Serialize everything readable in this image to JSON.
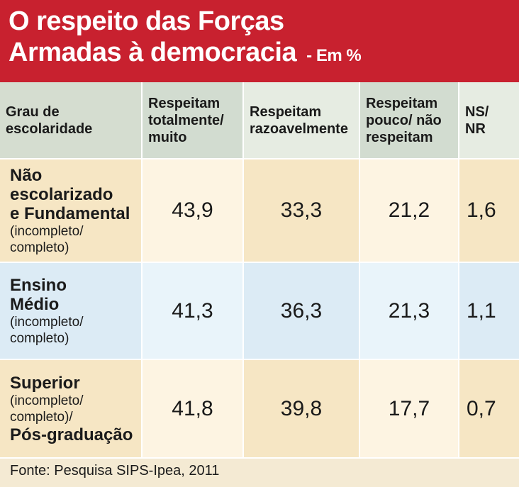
{
  "title": {
    "line1": "O respeito das Forças",
    "line2": "Armadas à democracia",
    "unit": "- Em %"
  },
  "chart_data": {
    "type": "table",
    "columns": [
      {
        "line1": "Grau de",
        "line2": "escolaridade",
        "line3": ""
      },
      {
        "line1": "Respeitam",
        "line2": "totalmente/",
        "line3": "muito"
      },
      {
        "line1": "Respeitam",
        "line2": "razoavelmente",
        "line3": ""
      },
      {
        "line1": "Respeitam",
        "line2": "pouco/ não",
        "line3": "respeitam"
      },
      {
        "line1": "NS/",
        "line2": "NR",
        "line3": ""
      }
    ],
    "rows": [
      {
        "label_lines": [
          {
            "text": "Não",
            "style": "main"
          },
          {
            "text": "escolarizado",
            "style": "main"
          },
          {
            "text": "e Fundamental",
            "style": "main"
          },
          {
            "text": "(incompleto/",
            "style": "sub"
          },
          {
            "text": "completo)",
            "style": "sub"
          }
        ],
        "values": [
          "43,9",
          "33,3",
          "21,2",
          "1,6"
        ]
      },
      {
        "label_lines": [
          {
            "text": "Ensino",
            "style": "main"
          },
          {
            "text": "Médio",
            "style": "main"
          },
          {
            "text": "(incompleto/",
            "style": "sub"
          },
          {
            "text": "completo)",
            "style": "sub"
          }
        ],
        "values": [
          "41,3",
          "36,3",
          "21,3",
          "1,1"
        ]
      },
      {
        "label_lines": [
          {
            "text": "Superior",
            "style": "main"
          },
          {
            "text": "(incompleto/",
            "style": "sub"
          },
          {
            "text": "completo)/",
            "style": "sub"
          },
          {
            "text": "Pós-graduação",
            "style": "main"
          }
        ],
        "values": [
          "41,8",
          "39,8",
          "17,7",
          "0,7"
        ]
      }
    ]
  },
  "source": "Fonte: Pesquisa SIPS-Ipea, 2011",
  "colors": {
    "title_bg": "#c8212f",
    "header_bg": "#d2dcd0",
    "row_warm": "#f6e6c4",
    "row_blue": "#dcebf5"
  }
}
